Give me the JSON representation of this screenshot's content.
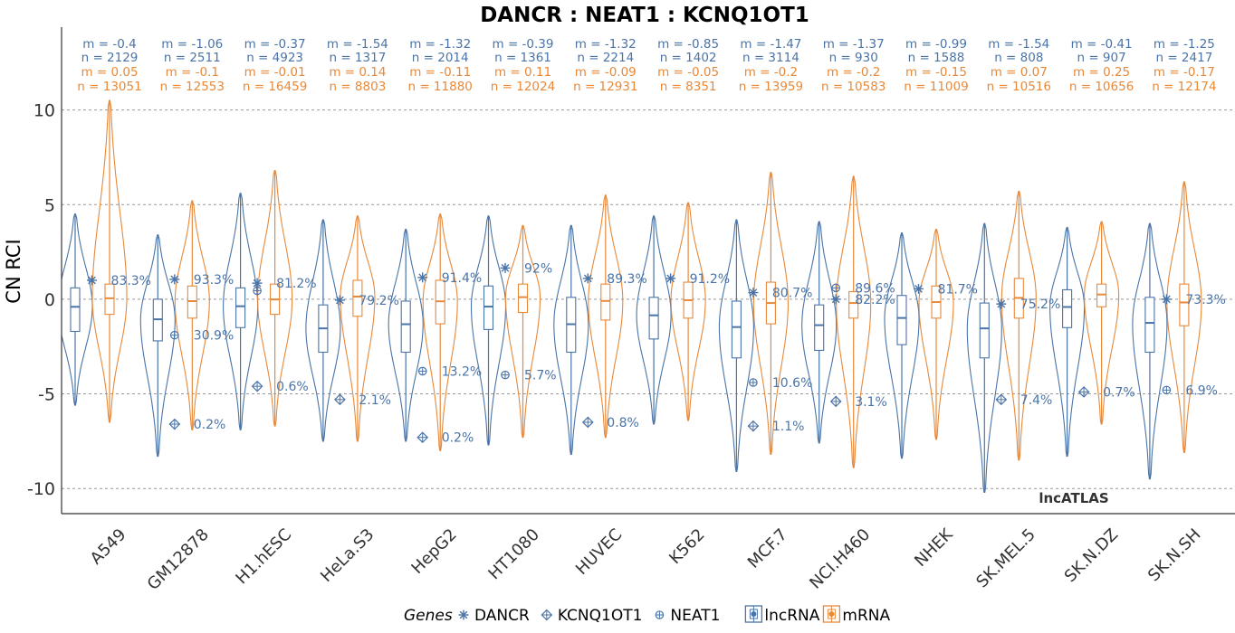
{
  "chart_data": {
    "type": "violin",
    "title": "DANCR : NEAT1 : KCNQ1OT1",
    "ylabel": "CN RCI",
    "xlabel": "",
    "ylim": [
      -11,
      13.8
    ],
    "yticks": [
      10,
      5,
      0,
      -5,
      -10
    ],
    "ytick_labels": [
      "10",
      "5",
      "0",
      "-5",
      "-10"
    ],
    "grid": "horizontal dashed",
    "watermark": "lncATLAS",
    "colors": {
      "lncRNA": "#4a74a8",
      "mRNA": "#e8893a",
      "grid": "#999999",
      "axis": "#333333"
    },
    "legend": {
      "position": "bottom",
      "genes_title": "Genes",
      "genes": [
        {
          "symbol": "asterisk",
          "label": "DANCR"
        },
        {
          "symbol": "diamond-plus",
          "label": "KCNQ1OT1"
        },
        {
          "symbol": "circle-plus",
          "label": "NEAT1"
        }
      ],
      "boxes": [
        {
          "color": "lncRNA",
          "label": "lncRNA"
        },
        {
          "color": "mRNA",
          "label": "mRNA"
        }
      ]
    },
    "cell_lines": [
      {
        "name": "A549",
        "lnc": {
          "m": -0.4,
          "n": 2129,
          "median": -0.4,
          "q1": -1.7,
          "q3": 0.6,
          "min": -5.6,
          "max": 4.5
        },
        "mrna": {
          "m": 0.05,
          "n": 13051,
          "median": 0.05,
          "q1": -0.8,
          "q3": 0.8,
          "min": -6.5,
          "max": 10.5
        },
        "genes": [
          {
            "gene": "DANCR",
            "value": 1.0,
            "pct": "83.3%"
          }
        ]
      },
      {
        "name": "GM12878",
        "lnc": {
          "m": -1.06,
          "n": 2511,
          "median": -1.06,
          "q1": -2.2,
          "q3": 0.0,
          "min": -8.3,
          "max": 3.4
        },
        "mrna": {
          "m": -0.1,
          "n": 12553,
          "median": -0.1,
          "q1": -1.0,
          "q3": 0.7,
          "min": -6.9,
          "max": 5.2
        },
        "genes": [
          {
            "gene": "DANCR",
            "value": 1.05,
            "pct": "93.3%"
          },
          {
            "gene": "NEAT1",
            "value": -1.9,
            "pct": "30.9%"
          },
          {
            "gene": "KCNQ1OT1",
            "value": -6.6,
            "pct": "0.2%"
          }
        ]
      },
      {
        "name": "H1.hESC",
        "lnc": {
          "m": -0.37,
          "n": 4923,
          "median": -0.37,
          "q1": -1.5,
          "q3": 0.6,
          "min": -6.9,
          "max": 5.6
        },
        "mrna": {
          "m": -0.01,
          "n": 16459,
          "median": -0.01,
          "q1": -0.8,
          "q3": 0.8,
          "min": -6.7,
          "max": 6.8
        },
        "genes": [
          {
            "gene": "DANCR",
            "value": 0.85,
            "pct": "81.2%"
          },
          {
            "gene": "NEAT1",
            "value": 0.45,
            "pct": ""
          },
          {
            "gene": "KCNQ1OT1",
            "value": -4.6,
            "pct": "0.6%"
          }
        ]
      },
      {
        "name": "HeLa.S3",
        "lnc": {
          "m": -1.54,
          "n": 1317,
          "median": -1.54,
          "q1": -2.8,
          "q3": -0.3,
          "min": -7.5,
          "max": 4.2
        },
        "mrna": {
          "m": 0.14,
          "n": 8803,
          "median": 0.14,
          "q1": -0.9,
          "q3": 1.0,
          "min": -7.5,
          "max": 4.4
        },
        "genes": [
          {
            "gene": "DANCR",
            "value": -0.05,
            "pct": "79.2%"
          },
          {
            "gene": "KCNQ1OT1",
            "value": -5.3,
            "pct": "2.1%"
          }
        ]
      },
      {
        "name": "HepG2",
        "lnc": {
          "m": -1.32,
          "n": 2014,
          "median": -1.32,
          "q1": -2.8,
          "q3": -0.1,
          "min": -7.5,
          "max": 3.7
        },
        "mrna": {
          "m": -0.11,
          "n": 11880,
          "median": -0.11,
          "q1": -1.3,
          "q3": 1.0,
          "min": -8.0,
          "max": 4.5
        },
        "genes": [
          {
            "gene": "DANCR",
            "value": 1.15,
            "pct": "91.4%"
          },
          {
            "gene": "NEAT1",
            "value": -3.8,
            "pct": "13.2%"
          },
          {
            "gene": "KCNQ1OT1",
            "value": -7.3,
            "pct": "0.2%"
          }
        ]
      },
      {
        "name": "HT1080",
        "lnc": {
          "m": -0.39,
          "n": 1361,
          "median": -0.39,
          "q1": -1.6,
          "q3": 0.7,
          "min": -7.7,
          "max": 4.4
        },
        "mrna": {
          "m": 0.11,
          "n": 12024,
          "median": 0.11,
          "q1": -0.7,
          "q3": 0.8,
          "min": -7.3,
          "max": 3.9
        },
        "genes": [
          {
            "gene": "DANCR",
            "value": 1.65,
            "pct": "92%"
          },
          {
            "gene": "NEAT1",
            "value": -4.0,
            "pct": "5.7%"
          }
        ]
      },
      {
        "name": "HUVEC",
        "lnc": {
          "m": -1.32,
          "n": 2214,
          "median": -1.32,
          "q1": -2.8,
          "q3": 0.1,
          "min": -8.2,
          "max": 3.9
        },
        "mrna": {
          "m": -0.09,
          "n": 12931,
          "median": -0.09,
          "q1": -1.1,
          "q3": 0.8,
          "min": -7.3,
          "max": 5.5
        },
        "genes": [
          {
            "gene": "DANCR",
            "value": 1.1,
            "pct": "89.3%"
          },
          {
            "gene": "KCNQ1OT1",
            "value": -6.5,
            "pct": "0.8%"
          }
        ]
      },
      {
        "name": "K562",
        "lnc": {
          "m": -0.85,
          "n": 1402,
          "median": -0.85,
          "q1": -2.1,
          "q3": 0.1,
          "min": -6.6,
          "max": 4.4
        },
        "mrna": {
          "m": -0.05,
          "n": 8351,
          "median": -0.05,
          "q1": -1.0,
          "q3": 0.9,
          "min": -6.4,
          "max": 5.1
        },
        "genes": [
          {
            "gene": "DANCR",
            "value": 1.1,
            "pct": "91.2%"
          }
        ]
      },
      {
        "name": "MCF.7",
        "lnc": {
          "m": -1.47,
          "n": 3114,
          "median": -1.47,
          "q1": -3.1,
          "q3": -0.1,
          "min": -9.1,
          "max": 4.2
        },
        "mrna": {
          "m": -0.2,
          "n": 13959,
          "median": -0.2,
          "q1": -1.3,
          "q3": 0.9,
          "min": -8.2,
          "max": 6.7
        },
        "genes": [
          {
            "gene": "DANCR",
            "value": 0.35,
            "pct": "80.7%"
          },
          {
            "gene": "NEAT1",
            "value": -4.4,
            "pct": "10.6%"
          },
          {
            "gene": "KCNQ1OT1",
            "value": -6.7,
            "pct": "1.1%"
          }
        ]
      },
      {
        "name": "NCI.H460",
        "lnc": {
          "m": -1.37,
          "n": 930,
          "median": -1.37,
          "q1": -2.7,
          "q3": -0.3,
          "min": -7.6,
          "max": 4.1
        },
        "mrna": {
          "m": -0.2,
          "n": 10583,
          "median": -0.2,
          "q1": -1.0,
          "q3": 0.4,
          "min": -8.9,
          "max": 6.5
        },
        "genes": [
          {
            "gene": "NEAT1",
            "value": 0.6,
            "pct": "89.6%"
          },
          {
            "gene": "DANCR",
            "value": 0.0,
            "pct": "82.2%"
          },
          {
            "gene": "KCNQ1OT1",
            "value": -5.4,
            "pct": "3.1%"
          }
        ]
      },
      {
        "name": "NHEK",
        "lnc": {
          "m": -0.99,
          "n": 1588,
          "median": -0.99,
          "q1": -2.4,
          "q3": 0.2,
          "min": -8.4,
          "max": 3.5
        },
        "mrna": {
          "m": -0.15,
          "n": 11009,
          "median": -0.15,
          "q1": -1.0,
          "q3": 0.7,
          "min": -7.4,
          "max": 3.7
        },
        "genes": [
          {
            "gene": "DANCR",
            "value": 0.55,
            "pct": "81.7%"
          }
        ]
      },
      {
        "name": "SK.MEL.5",
        "lnc": {
          "m": -1.54,
          "n": 808,
          "median": -1.54,
          "q1": -3.1,
          "q3": -0.2,
          "min": -10.2,
          "max": 4.0
        },
        "mrna": {
          "m": 0.07,
          "n": 10516,
          "median": 0.07,
          "q1": -1.0,
          "q3": 1.1,
          "min": -8.5,
          "max": 5.7
        },
        "genes": [
          {
            "gene": "DANCR",
            "value": -0.25,
            "pct": "75.2%"
          },
          {
            "gene": "KCNQ1OT1",
            "value": -5.3,
            "pct": "7.4%"
          }
        ]
      },
      {
        "name": "SK.N.DZ",
        "lnc": {
          "m": -0.41,
          "n": 907,
          "median": -0.41,
          "q1": -1.5,
          "q3": 0.5,
          "min": -8.3,
          "max": 3.8
        },
        "mrna": {
          "m": 0.25,
          "n": 10656,
          "median": 0.25,
          "q1": -0.4,
          "q3": 0.8,
          "min": -6.6,
          "max": 4.1
        },
        "genes": [
          {
            "gene": "KCNQ1OT1",
            "value": -4.9,
            "pct": "0.7%"
          }
        ]
      },
      {
        "name": "SK.N.SH",
        "lnc": {
          "m": -1.25,
          "n": 2417,
          "median": -1.25,
          "q1": -2.8,
          "q3": 0.1,
          "min": -9.5,
          "max": 4.0
        },
        "mrna": {
          "m": -0.17,
          "n": 12174,
          "median": -0.17,
          "q1": -1.4,
          "q3": 0.8,
          "min": -8.1,
          "max": 6.2
        },
        "genes": [
          {
            "gene": "DANCR",
            "value": 0.0,
            "pct": "73.3%"
          },
          {
            "gene": "NEAT1",
            "value": -4.8,
            "pct": "6.9%"
          }
        ]
      }
    ]
  }
}
